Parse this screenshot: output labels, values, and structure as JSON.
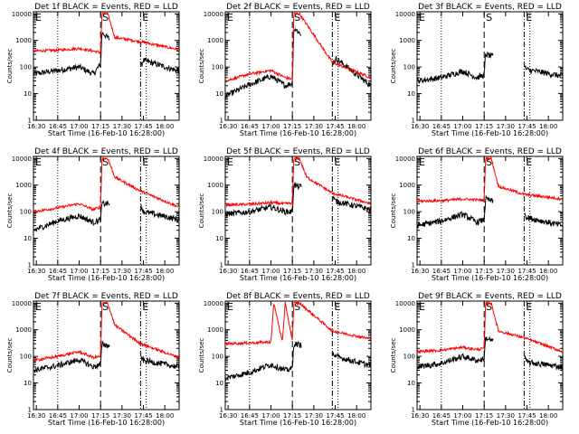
{
  "figure": {
    "ylabel": "Counts/sec",
    "xlabel": "Start Time (16-Feb-10 16:28:00)",
    "colors": {
      "events": "#000000",
      "lld": "#ff0000"
    }
  },
  "chart_data": [
    {
      "type": "line",
      "title": "Det 1f BLACK = Events, RED = LLD",
      "start_marker": "E",
      "mid_marker": "S",
      "end_marker": "E",
      "x_ticks": [
        "16:30",
        "16:45",
        "17:00",
        "17:15",
        "17:30",
        "17:45",
        "18:00"
      ],
      "y_ticks": [
        "1",
        "10",
        "100",
        "1000",
        "10000"
      ],
      "yscale": "log",
      "ylim": [
        1,
        12000
      ],
      "xlim": [
        "16:28",
        "18:10"
      ],
      "dotted_lines": [
        "16:45",
        "17:47"
      ],
      "dashed_lines": [
        "17:15"
      ],
      "dashdot_lines": [
        "17:43"
      ],
      "gap": [
        "17:20",
        "17:43"
      ],
      "series": [
        {
          "color": "black",
          "x": [
            "16:28",
            "16:45",
            "17:00",
            "17:10",
            "17:15",
            "17:16",
            "17:43",
            "17:45",
            "18:10"
          ],
          "y": [
            55,
            75,
            100,
            55,
            130,
            2000,
            100,
            180,
            70
          ]
        },
        {
          "color": "red",
          "x": [
            "16:28",
            "16:45",
            "17:00",
            "17:10",
            "17:15",
            "17:16",
            "17:20",
            "17:25",
            "17:43",
            "18:10"
          ],
          "y": [
            400,
            430,
            500,
            400,
            350,
            10000,
            10000,
            1300,
            900,
            450
          ]
        }
      ]
    },
    {
      "type": "line",
      "title": "Det 2f BLACK = Events, RED = LLD",
      "start_marker": "E",
      "mid_marker": "S",
      "end_marker": "E",
      "x_ticks": [
        "16:30",
        "16:45",
        "17:00",
        "17:15",
        "17:30",
        "17:45",
        "18:00"
      ],
      "y_ticks": [
        "1",
        "10",
        "100",
        "1000",
        "10000"
      ],
      "yscale": "log",
      "ylim": [
        1,
        12000
      ],
      "xlim": [
        "16:28",
        "18:10"
      ],
      "dotted_lines": [
        "16:45",
        "17:47"
      ],
      "dashed_lines": [
        "17:15"
      ],
      "dashdot_lines": [
        "17:43"
      ],
      "gap": [
        "17:20",
        "17:43"
      ],
      "series": [
        {
          "color": "black",
          "x": [
            "16:28",
            "16:45",
            "17:00",
            "17:10",
            "17:15",
            "17:16",
            "17:43",
            "17:46",
            "18:10"
          ],
          "y": [
            8,
            22,
            45,
            20,
            25,
            3000,
            150,
            200,
            20
          ]
        },
        {
          "color": "red",
          "x": [
            "16:28",
            "16:45",
            "17:00",
            "17:10",
            "17:15",
            "17:16",
            "17:20",
            "17:43",
            "18:10"
          ],
          "y": [
            30,
            55,
            75,
            40,
            35,
            10000,
            10000,
            150,
            40
          ]
        }
      ]
    },
    {
      "type": "line",
      "title": "Det 3f BLACK = Events, RED = LLD",
      "start_marker": "E",
      "mid_marker": "S",
      "end_marker": "E",
      "x_ticks": [
        "16:30",
        "16:45",
        "17:00",
        "17:15",
        "17:30",
        "17:45",
        "18:00"
      ],
      "y_ticks": [
        "1",
        "10",
        "100",
        "1000",
        "10000"
      ],
      "yscale": "log",
      "ylim": [
        1,
        12000
      ],
      "xlim": [
        "16:28",
        "18:10"
      ],
      "dotted_lines": [
        "16:45",
        "17:47"
      ],
      "dashed_lines": [
        "17:15"
      ],
      "dashdot_lines": [
        "17:43"
      ],
      "gap": [
        "17:20",
        "17:43"
      ],
      "series": [
        {
          "color": "black",
          "x": [
            "16:28",
            "16:45",
            "17:00",
            "17:10",
            "17:15",
            "17:16",
            "17:43",
            "17:45",
            "18:10"
          ],
          "y": [
            30,
            40,
            70,
            40,
            50,
            300,
            100,
            80,
            45
          ]
        }
      ]
    },
    {
      "type": "line",
      "title": "Det 4f BLACK = Events, RED = LLD",
      "start_marker": "E",
      "mid_marker": "S",
      "end_marker": "E",
      "x_ticks": [
        "16:30",
        "16:45",
        "17:00",
        "17:15",
        "17:30",
        "17:45",
        "18:00"
      ],
      "y_ticks": [
        "1",
        "10",
        "100",
        "1000",
        "10000"
      ],
      "yscale": "log",
      "ylim": [
        1,
        12000
      ],
      "xlim": [
        "16:28",
        "18:10"
      ],
      "dotted_lines": [
        "16:45",
        "17:47"
      ],
      "dashed_lines": [
        "17:15"
      ],
      "dashdot_lines": [
        "17:43"
      ],
      "gap": [
        "17:20",
        "17:43"
      ],
      "series": [
        {
          "color": "black",
          "x": [
            "16:28",
            "16:45",
            "17:00",
            "17:10",
            "17:15",
            "17:16",
            "17:43",
            "17:45",
            "18:10"
          ],
          "y": [
            20,
            45,
            70,
            40,
            50,
            200,
            200,
            100,
            50
          ]
        },
        {
          "color": "red",
          "x": [
            "16:28",
            "16:45",
            "17:00",
            "17:10",
            "17:15",
            "17:16",
            "17:20",
            "17:25",
            "17:43",
            "18:10"
          ],
          "y": [
            100,
            140,
            200,
            120,
            150,
            10000,
            10000,
            2000,
            600,
            150
          ]
        }
      ]
    },
    {
      "type": "line",
      "title": "Det 5f BLACK = Events, RED = LLD",
      "start_marker": "E",
      "mid_marker": "S",
      "end_marker": "E",
      "x_ticks": [
        "16:30",
        "16:45",
        "17:00",
        "17:15",
        "17:30",
        "17:45",
        "18:00"
      ],
      "y_ticks": [
        "1",
        "10",
        "100",
        "1000",
        "10000"
      ],
      "yscale": "log",
      "ylim": [
        1,
        12000
      ],
      "xlim": [
        "16:28",
        "18:10"
      ],
      "dotted_lines": [
        "16:45",
        "17:47"
      ],
      "dashed_lines": [
        "17:15"
      ],
      "dashdot_lines": [
        "17:43"
      ],
      "gap": [
        "17:20",
        "17:43"
      ],
      "series": [
        {
          "color": "black",
          "x": [
            "16:28",
            "16:45",
            "17:00",
            "17:10",
            "17:15",
            "17:16",
            "17:43",
            "17:45",
            "18:10"
          ],
          "y": [
            80,
            100,
            150,
            100,
            100,
            1000,
            400,
            250,
            120
          ]
        },
        {
          "color": "red",
          "x": [
            "16:28",
            "16:45",
            "17:00",
            "17:10",
            "17:15",
            "17:16",
            "17:20",
            "17:25",
            "17:43",
            "18:10"
          ],
          "y": [
            180,
            190,
            220,
            200,
            210,
            10000,
            10000,
            2000,
            500,
            200
          ]
        }
      ]
    },
    {
      "type": "line",
      "title": "Det 6f BLACK = Events, RED = LLD",
      "start_marker": "E",
      "mid_marker": "S",
      "end_marker": "E",
      "x_ticks": [
        "16:30",
        "16:45",
        "17:00",
        "17:15",
        "17:30",
        "17:45",
        "18:00"
      ],
      "y_ticks": [
        "1",
        "10",
        "100",
        "1000",
        "10000"
      ],
      "yscale": "log",
      "ylim": [
        1,
        12000
      ],
      "xlim": [
        "16:28",
        "18:10"
      ],
      "dotted_lines": [
        "16:45",
        "17:47"
      ],
      "dashed_lines": [
        "17:15"
      ],
      "dashdot_lines": [
        "17:43"
      ],
      "gap": [
        "17:20",
        "17:43"
      ],
      "series": [
        {
          "color": "black",
          "x": [
            "16:28",
            "16:45",
            "17:00",
            "17:10",
            "17:15",
            "17:16",
            "17:43",
            "17:45",
            "18:10"
          ],
          "y": [
            30,
            45,
            80,
            40,
            50,
            300,
            100,
            60,
            30
          ]
        },
        {
          "color": "red",
          "x": [
            "16:28",
            "16:45",
            "17:00",
            "17:10",
            "17:15",
            "17:16",
            "17:20",
            "17:25",
            "17:43",
            "18:10"
          ],
          "y": [
            250,
            260,
            300,
            280,
            270,
            10000,
            10000,
            900,
            450,
            300
          ]
        }
      ]
    },
    {
      "type": "line",
      "title": "Det 7f BLACK = Events, RED = LLD",
      "start_marker": "E",
      "mid_marker": "S",
      "end_marker": "E",
      "x_ticks": [
        "16:30",
        "16:45",
        "17:00",
        "17:15",
        "17:30",
        "17:45",
        "18:00"
      ],
      "y_ticks": [
        "1",
        "10",
        "100",
        "1000",
        "10000"
      ],
      "yscale": "log",
      "ylim": [
        1,
        12000
      ],
      "xlim": [
        "16:28",
        "18:10"
      ],
      "dotted_lines": [
        "16:45",
        "17:47"
      ],
      "dashed_lines": [
        "17:15"
      ],
      "dashdot_lines": [
        "17:43"
      ],
      "gap": [
        "17:20",
        "17:43"
      ],
      "series": [
        {
          "color": "black",
          "x": [
            "16:28",
            "16:45",
            "17:00",
            "17:10",
            "17:15",
            "17:16",
            "17:43",
            "17:45",
            "18:10"
          ],
          "y": [
            30,
            45,
            75,
            40,
            50,
            300,
            100,
            70,
            40
          ]
        },
        {
          "color": "red",
          "x": [
            "16:28",
            "16:45",
            "17:00",
            "17:10",
            "17:15",
            "17:16",
            "17:20",
            "17:25",
            "17:43",
            "18:10"
          ],
          "y": [
            70,
            100,
            150,
            90,
            100,
            10000,
            10000,
            1500,
            300,
            90
          ]
        }
      ]
    },
    {
      "type": "line",
      "title": "Det 8f BLACK = Events, RED = LLD",
      "start_marker": "E",
      "mid_marker": "S",
      "end_marker": "E",
      "x_ticks": [
        "16:30",
        "16:45",
        "17:00",
        "17:15",
        "17:30",
        "17:45",
        "18:00"
      ],
      "y_ticks": [
        "1",
        "10",
        "100",
        "1000",
        "10000"
      ],
      "yscale": "log",
      "ylim": [
        1,
        12000
      ],
      "xlim": [
        "16:28",
        "18:10"
      ],
      "dotted_lines": [
        "16:45",
        "17:47"
      ],
      "dashed_lines": [
        "17:15"
      ],
      "dashdot_lines": [
        "17:43"
      ],
      "gap": [
        "17:20",
        "17:43"
      ],
      "series": [
        {
          "color": "black",
          "x": [
            "16:28",
            "16:45",
            "17:00",
            "17:10",
            "17:15",
            "17:16",
            "17:43",
            "17:45",
            "18:10"
          ],
          "y": [
            15,
            25,
            50,
            30,
            35,
            300,
            150,
            100,
            45
          ]
        },
        {
          "color": "red",
          "x": [
            "16:28",
            "16:45",
            "17:00",
            "17:02",
            "17:08",
            "17:10",
            "17:15",
            "17:16",
            "17:20",
            "17:43",
            "18:10"
          ],
          "y": [
            300,
            320,
            350,
            10000,
            350,
            10000,
            400,
            10000,
            10000,
            900,
            450
          ]
        }
      ]
    },
    {
      "type": "line",
      "title": "Det 9f BLACK = Events, RED = LLD",
      "start_marker": "E",
      "mid_marker": "S",
      "end_marker": "E",
      "x_ticks": [
        "16:30",
        "16:45",
        "17:00",
        "17:15",
        "17:30",
        "17:45",
        "18:00"
      ],
      "y_ticks": [
        "1",
        "10",
        "100",
        "1000",
        "10000"
      ],
      "yscale": "log",
      "ylim": [
        1,
        12000
      ],
      "xlim": [
        "16:28",
        "18:10"
      ],
      "dotted_lines": [
        "16:45",
        "17:47"
      ],
      "dashed_lines": [
        "17:15"
      ],
      "dashdot_lines": [
        "17:43"
      ],
      "gap": [
        "17:20",
        "17:43"
      ],
      "series": [
        {
          "color": "black",
          "x": [
            "16:28",
            "16:45",
            "17:00",
            "17:10",
            "17:15",
            "17:16",
            "17:43",
            "17:45",
            "18:10"
          ],
          "y": [
            40,
            55,
            100,
            70,
            80,
            500,
            100,
            60,
            40
          ]
        },
        {
          "color": "red",
          "x": [
            "16:28",
            "16:45",
            "17:00",
            "17:10",
            "17:15",
            "17:16",
            "17:20",
            "17:25",
            "17:43",
            "18:10"
          ],
          "y": [
            150,
            170,
            220,
            180,
            200,
            10000,
            10000,
            900,
            500,
            150
          ]
        }
      ]
    }
  ]
}
